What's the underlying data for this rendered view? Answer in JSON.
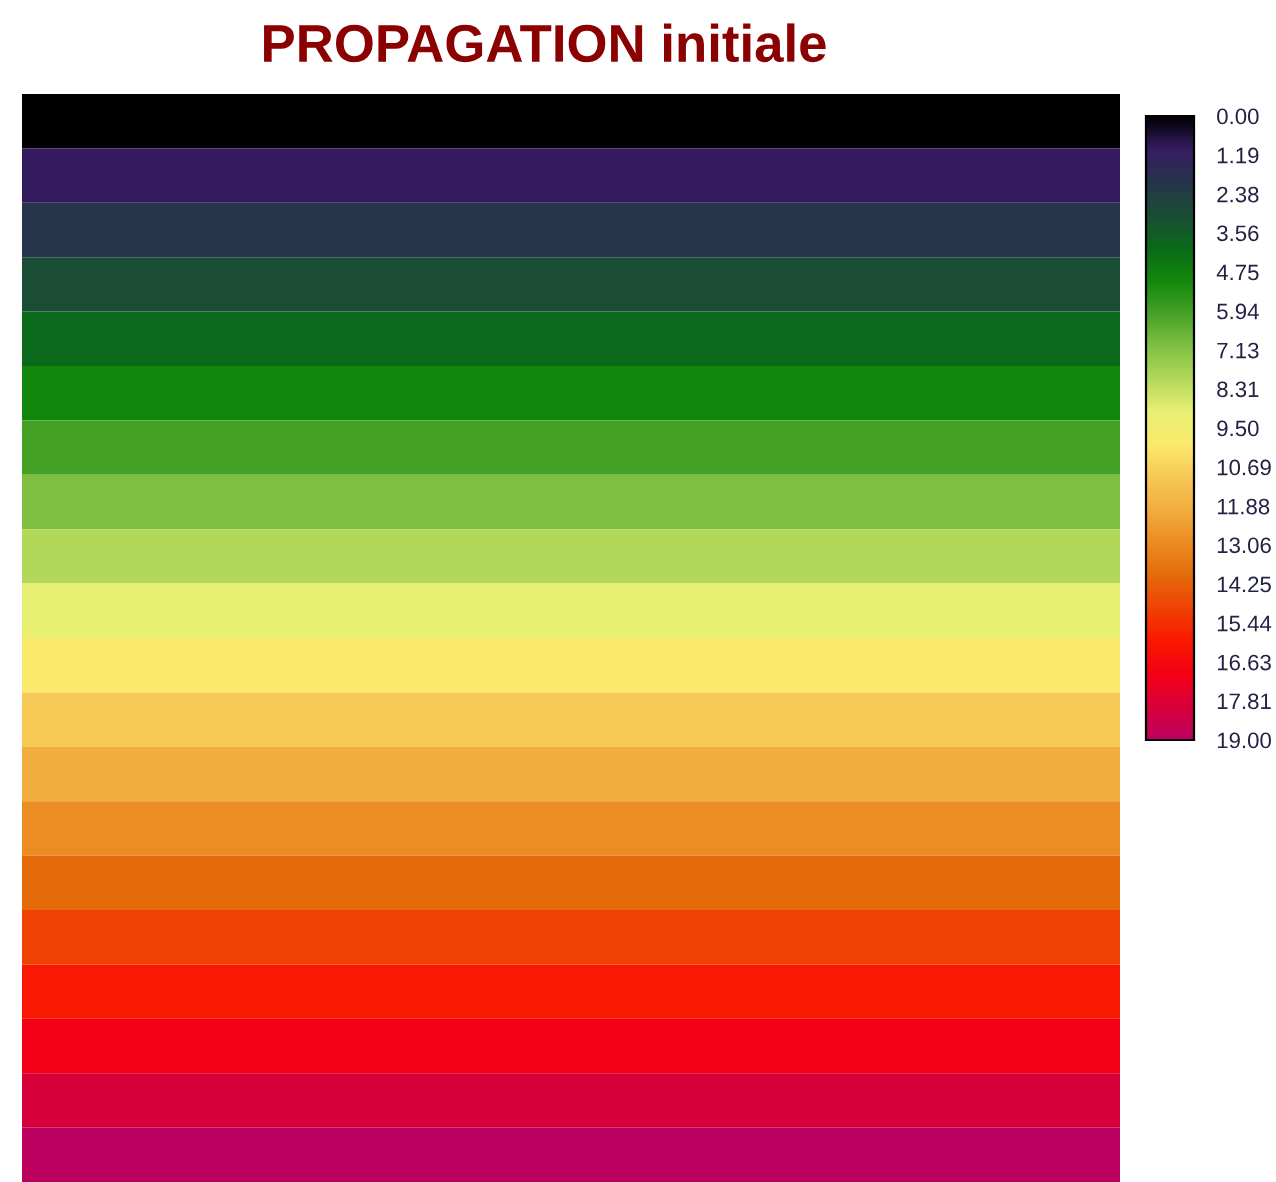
{
  "chart_data": {
    "type": "heatmap",
    "title": "PROPAGATION initiale",
    "categories": [
      null
    ],
    "y_categories": [
      null,
      null,
      null,
      null,
      null,
      null,
      null,
      null,
      null,
      null,
      null,
      null,
      null,
      null,
      null,
      null,
      null,
      null,
      null,
      null
    ],
    "cells": [
      [
        0
      ],
      [
        1
      ],
      [
        2
      ],
      [
        3
      ],
      [
        4
      ],
      [
        5
      ],
      [
        6
      ],
      [
        7
      ],
      [
        8
      ],
      [
        9
      ],
      [
        10
      ],
      [
        11
      ],
      [
        12
      ],
      [
        13
      ],
      [
        14
      ],
      [
        15
      ],
      [
        16
      ],
      [
        17
      ],
      [
        18
      ],
      [
        19
      ]
    ],
    "colors": [
      "#000000",
      "#361c63",
      "#26354b",
      "#1b4d35",
      "#0a6a1a",
      "#12880c",
      "#46a126",
      "#80c043",
      "#b2d85a",
      "#e8f074",
      "#fbe96c",
      "#f6c856",
      "#f2ad3f",
      "#eb8d22",
      "#e46b0a",
      "#ef4204",
      "#f91900",
      "#f50016",
      "#d9003a",
      "#bb0060"
    ],
    "clim": [
      0,
      19
    ],
    "cticks": [
      {
        "value": 0,
        "label": "0.00"
      },
      {
        "value": 1.19,
        "label": "1.19"
      },
      {
        "value": 2.38,
        "label": "2.38"
      },
      {
        "value": 3.56,
        "label": "3.56"
      },
      {
        "value": 4.75,
        "label": "4.75"
      },
      {
        "value": 5.94,
        "label": "5.94"
      },
      {
        "value": 7.13,
        "label": "7.13"
      },
      {
        "value": 8.31,
        "label": "8.31"
      },
      {
        "value": 9.5,
        "label": "9.50"
      },
      {
        "value": 10.69,
        "label": "10.69"
      },
      {
        "value": 11.88,
        "label": "11.88"
      },
      {
        "value": 13.06,
        "label": "13.06"
      },
      {
        "value": 14.25,
        "label": "14.25"
      },
      {
        "value": 15.44,
        "label": "15.44"
      },
      {
        "value": 16.63,
        "label": "16.63"
      },
      {
        "value": 17.81,
        "label": "17.81"
      },
      {
        "value": 19,
        "label": "19.00"
      }
    ]
  }
}
